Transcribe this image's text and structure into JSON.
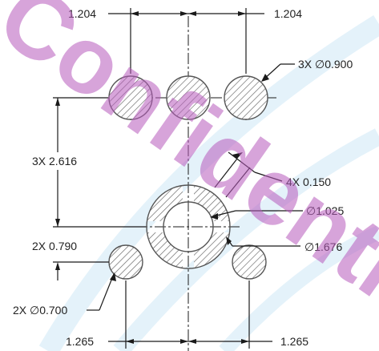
{
  "drawing": {
    "dims": {
      "top_left": "1.204",
      "top_right": "1.204",
      "hole_callout_top": "3X ∅0.900",
      "vertical_span": "3X 2.616",
      "ring_gap": "4X 0.150",
      "inner_dia": "∅1.025",
      "outer_dia": "∅1.676",
      "lower_offset": "2X 0.790",
      "small_hole": "2X ∅0.700",
      "bottom_left": "1.265",
      "bottom_right": "1.265"
    },
    "watermark": {
      "text": "Confidential",
      "color": "#c080c8",
      "band_color": "#cfe8f6"
    },
    "hatch_color": "#555555",
    "line_color": "#1a1a1a"
  }
}
